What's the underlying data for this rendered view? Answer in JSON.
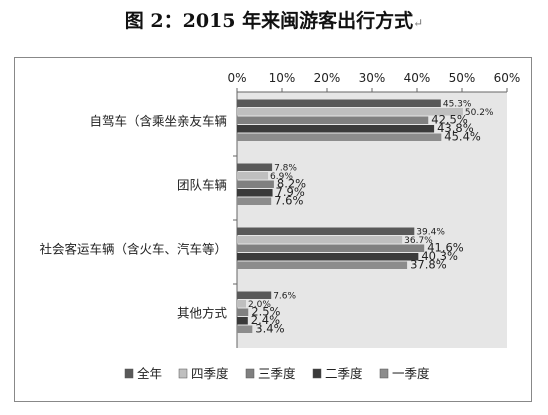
{
  "page": {
    "title": "图 2：2015 年来闽游客出行方式",
    "title_mark": "↵"
  },
  "chart_data": {
    "type": "bar",
    "orientation": "horizontal",
    "title": "",
    "xlabel": "",
    "ylabel": "",
    "xlim": [
      0,
      60
    ],
    "x_ticks": [
      "0%",
      "10%",
      "20%",
      "30%",
      "40%",
      "50%",
      "60%"
    ],
    "x_ticks_position": "top",
    "grid": false,
    "plot_background": "#e6e6e6",
    "legend_position": "bottom",
    "categories": [
      "自驾车（含乘坐亲友车辆",
      "团队车辆",
      "社会客运车辆（含火车、汽车等）",
      "其他方式"
    ],
    "series": [
      {
        "name": "全年",
        "color": "#595959",
        "values": [
          45.3,
          7.8,
          39.4,
          7.6
        ]
      },
      {
        "name": "四季度",
        "color": "#bfbfbf",
        "values": [
          50.2,
          6.9,
          36.7,
          2.0
        ]
      },
      {
        "name": "三季度",
        "color": "#808080",
        "values": [
          42.5,
          8.2,
          41.6,
          2.5
        ]
      },
      {
        "name": "二季度",
        "color": "#3a3a3a",
        "values": [
          43.8,
          7.9,
          40.3,
          2.4
        ]
      },
      {
        "name": "一季度",
        "color": "#8c8c8c",
        "values": [
          45.4,
          7.6,
          37.8,
          3.4
        ]
      }
    ]
  }
}
